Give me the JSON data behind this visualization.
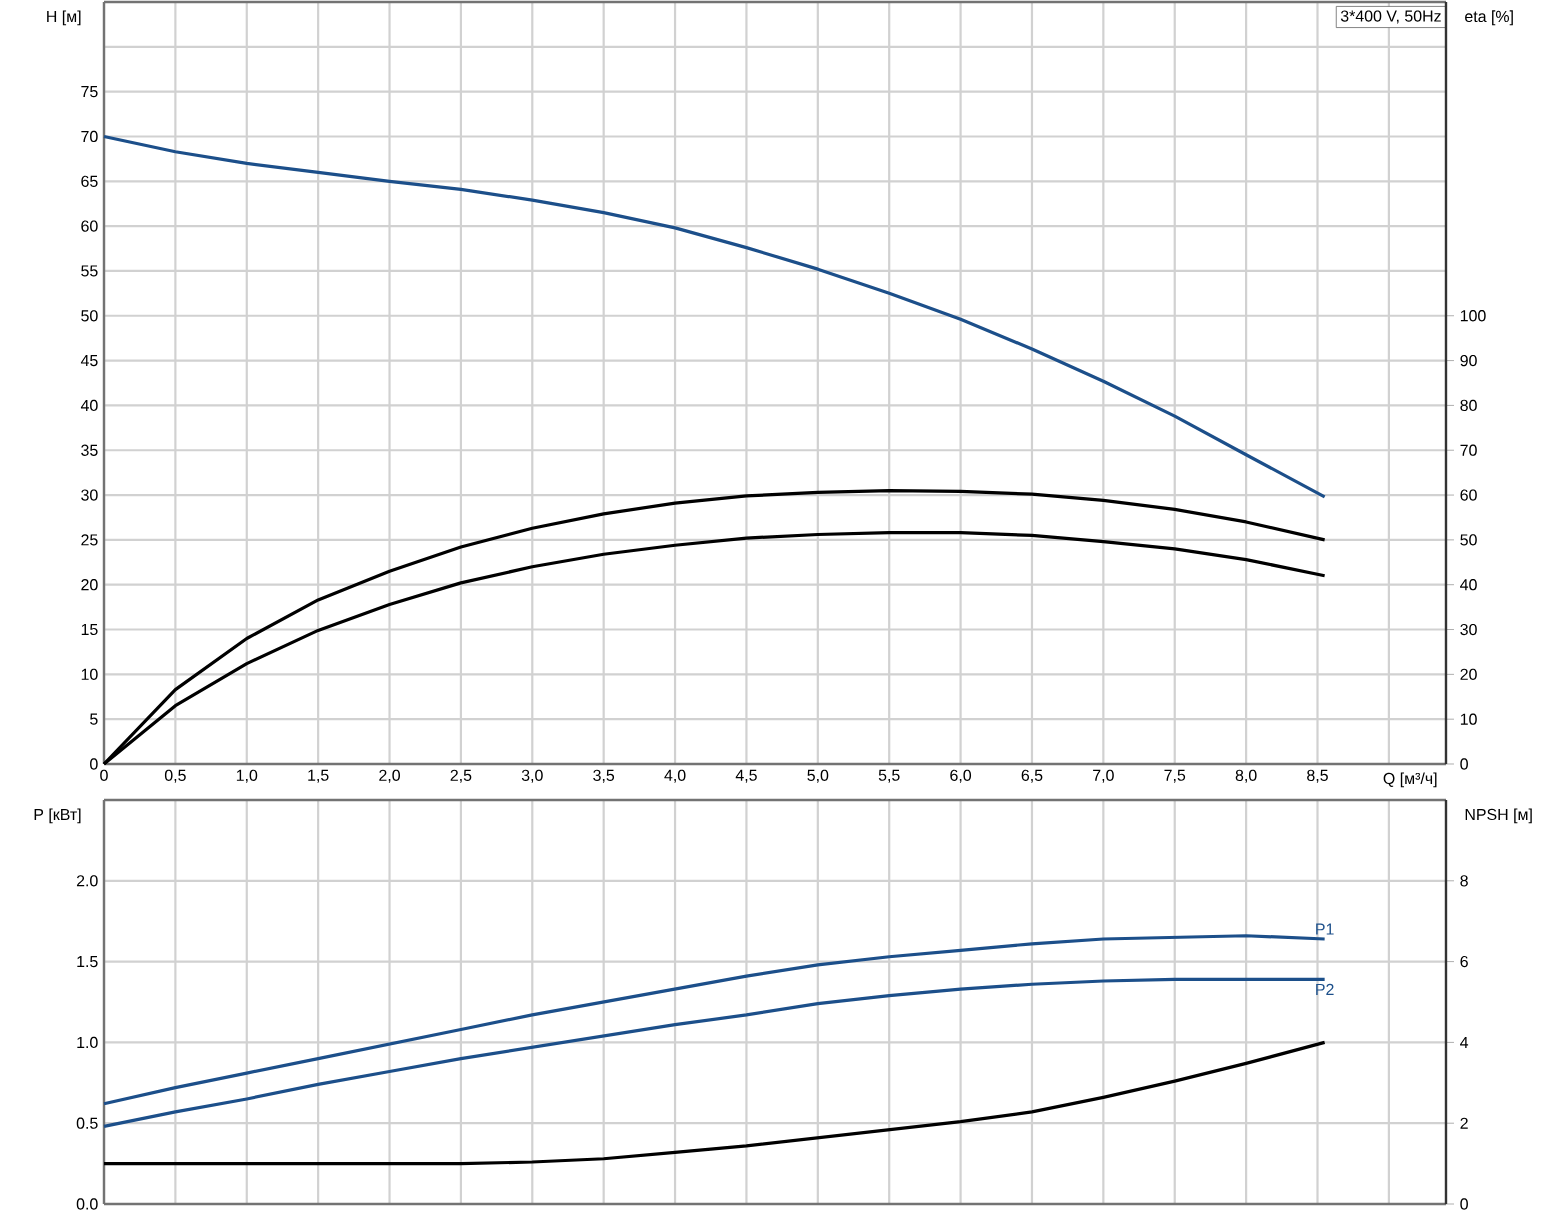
{
  "chart_data": [
    {
      "type": "line",
      "ylabel": "H [м]",
      "y2label": "eta [%]",
      "xlabel": "Q [м³/ч]",
      "annotations": [
        "3*400 V, 50Hz"
      ],
      "grid": true,
      "x": [
        0,
        0.5,
        1.0,
        1.5,
        2.0,
        2.5,
        3.0,
        3.5,
        4.0,
        4.5,
        5.0,
        5.5,
        6.0,
        6.5,
        7.0,
        7.5,
        8.0,
        8.55
      ],
      "xlim": [
        0,
        9.4
      ],
      "xticks": [
        0,
        {
          "value": 0.5,
          "label": "0,5"
        },
        {
          "value": 1.0,
          "label": "1,0"
        },
        {
          "value": 1.5,
          "label": "1,5"
        },
        {
          "value": 2.0,
          "label": "2,0"
        },
        {
          "value": 2.5,
          "label": "2,5"
        },
        {
          "value": 3.0,
          "label": "3,0"
        },
        {
          "value": 3.5,
          "label": "3,5"
        },
        {
          "value": 4.0,
          "label": "4,0"
        },
        {
          "value": 4.5,
          "label": "4,5"
        },
        {
          "value": 5.0,
          "label": "5,0"
        },
        {
          "value": 5.5,
          "label": "5,5"
        },
        {
          "value": 6.0,
          "label": "6,0"
        },
        {
          "value": 6.5,
          "label": "6,5"
        },
        {
          "value": 7.0,
          "label": "7,0"
        },
        {
          "value": 7.5,
          "label": "7,5"
        },
        {
          "value": 8.0,
          "label": "8,0"
        },
        {
          "value": 8.5,
          "label": "8,5"
        },
        {
          "value": 9.0,
          "label": null
        }
      ],
      "ylim": [
        0,
        85
      ],
      "yticks": [
        0,
        5,
        10,
        15,
        20,
        25,
        30,
        35,
        40,
        45,
        50,
        55,
        60,
        65,
        70,
        75,
        {
          "value": 80,
          "label": null
        }
      ],
      "y2lim": [
        0,
        170
      ],
      "y2ticks": [
        0,
        10,
        20,
        30,
        40,
        50,
        60,
        70,
        80,
        90,
        100
      ],
      "series": [
        {
          "color": "#1c4f8a",
          "values": [
            70,
            68.3,
            67,
            66,
            65,
            64.1,
            62.9,
            61.5,
            59.8,
            57.6,
            55.2,
            52.5,
            49.6,
            46.3,
            42.7,
            38.8,
            34.5,
            29.8
          ]
        },
        {
          "color": "#000000",
          "axis": "y2",
          "values": [
            0,
            16.6,
            28,
            36.6,
            43,
            48.4,
            52.6,
            55.8,
            58.2,
            59.8,
            60.6,
            61,
            60.8,
            60.2,
            58.8,
            56.8,
            54,
            50
          ]
        },
        {
          "color": "#000000",
          "axis": "y2",
          "values": [
            0,
            13,
            22.4,
            29.8,
            35.6,
            40.4,
            44,
            46.8,
            48.8,
            50.4,
            51.2,
            51.6,
            51.6,
            51,
            49.6,
            48,
            45.6,
            42
          ]
        }
      ]
    },
    {
      "type": "line",
      "ylabel": "P [кВт]",
      "y2label": "NPSH [м]",
      "grid": true,
      "tick_labels": "y",
      "x": [
        0,
        0.5,
        1.0,
        1.5,
        2.0,
        2.5,
        3.0,
        3.5,
        4.0,
        4.5,
        5.0,
        5.5,
        6.0,
        6.5,
        7.0,
        7.5,
        8.0,
        8.55
      ],
      "xlim": [
        0,
        9.4
      ],
      "xticks": [
        0,
        0.5,
        1.0,
        1.5,
        2.0,
        2.5,
        3.0,
        3.5,
        4.0,
        4.5,
        5.0,
        5.5,
        6.0,
        6.5,
        7.0,
        7.5,
        8.0,
        8.5,
        9.0
      ],
      "ylim": [
        0,
        2.5
      ],
      "yticks": [
        {
          "value": 0,
          "label": "0.0"
        },
        0.5,
        {
          "value": 1.0,
          "label": "1.0"
        },
        1.5,
        {
          "value": 2.0,
          "label": "2.0"
        }
      ],
      "y2lim": [
        0,
        10
      ],
      "y2ticks": [
        0,
        2,
        4,
        6,
        8
      ],
      "series": [
        {
          "name": "P1",
          "color": "#1c4f8a",
          "values": [
            0.62,
            0.72,
            0.81,
            0.9,
            0.99,
            1.08,
            1.17,
            1.25,
            1.33,
            1.41,
            1.48,
            1.53,
            1.57,
            1.61,
            1.64,
            1.65,
            1.66,
            1.64
          ]
        },
        {
          "name": "P2",
          "color": "#1c4f8a",
          "values": [
            0.48,
            0.57,
            0.65,
            0.74,
            0.82,
            0.9,
            0.97,
            1.04,
            1.11,
            1.17,
            1.24,
            1.29,
            1.33,
            1.36,
            1.38,
            1.39,
            1.39,
            1.39
          ]
        },
        {
          "color": "#000000",
          "axis": "y2",
          "values": [
            1,
            1,
            1,
            1,
            1,
            1,
            1.04,
            1.12,
            1.28,
            1.44,
            1.64,
            1.84,
            2.04,
            2.28,
            2.64,
            3.04,
            3.48,
            4.0
          ]
        }
      ]
    }
  ]
}
